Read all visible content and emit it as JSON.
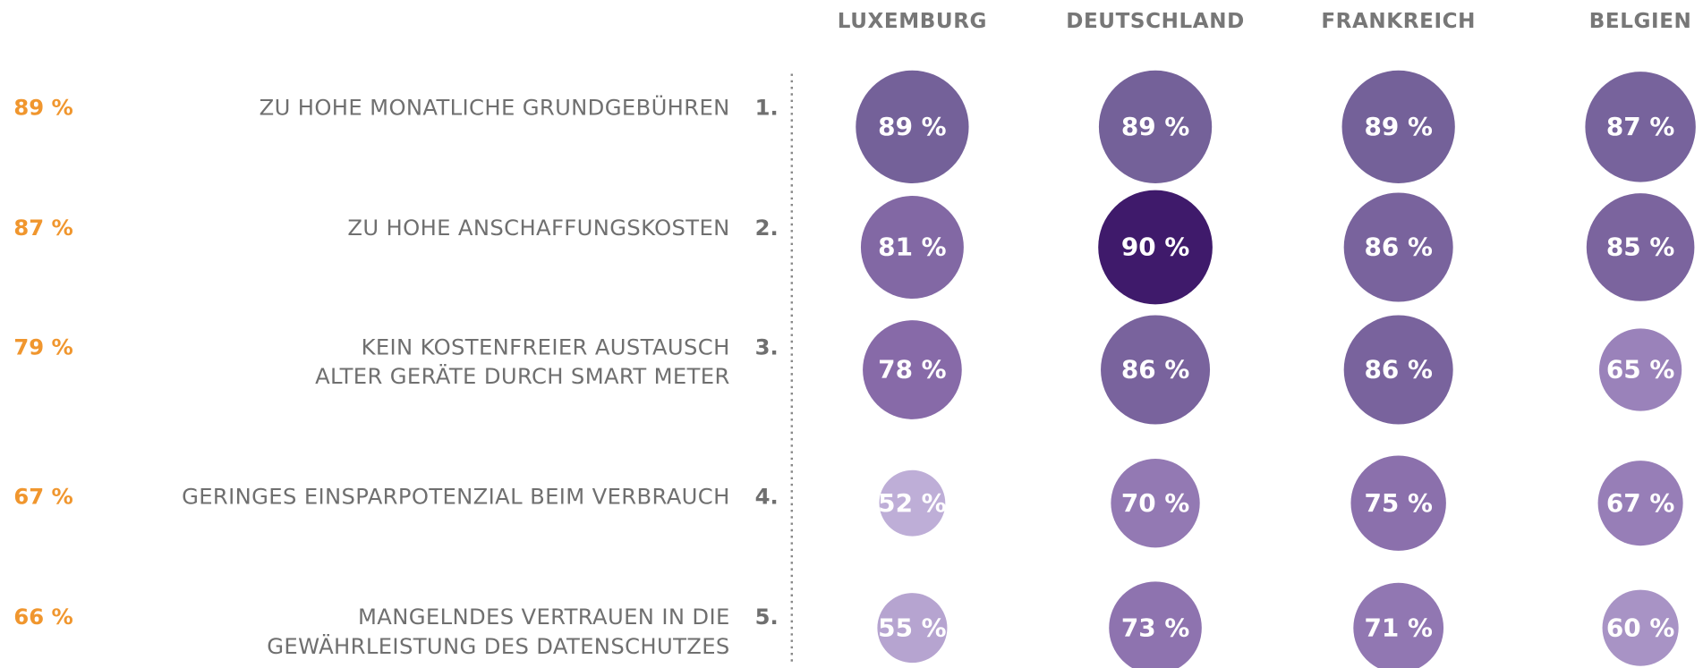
{
  "chart_data": {
    "type": "bubble_matrix",
    "columns": [
      "LUXEMBURG",
      "DEUTSCHLAND",
      "FRANKREICH",
      "BELGIEN"
    ],
    "rows": [
      {
        "total": 89,
        "total_label": "89 %",
        "label_lines": [
          "ZU HOHE MONATLICHE GRUNDGEBÜHREN"
        ],
        "rank": "1.",
        "values": [
          89,
          89,
          89,
          87
        ],
        "value_labels": [
          "89 %",
          "89 %",
          "89 %",
          "87 %"
        ]
      },
      {
        "total": 87,
        "total_label": "87 %",
        "label_lines": [
          "ZU HOHE ANSCHAFFUNGSKOSTEN"
        ],
        "rank": "2.",
        "values": [
          81,
          90,
          86,
          85
        ],
        "value_labels": [
          "81 %",
          "90 %",
          "86 %",
          "85 %"
        ]
      },
      {
        "total": 79,
        "total_label": "79 %",
        "label_lines": [
          "KEIN KOSTENFREIER AUSTAUSCH",
          "ALTER GERÄTE DURCH SMART METER"
        ],
        "rank": "3.",
        "values": [
          78,
          86,
          86,
          65
        ],
        "value_labels": [
          "78 %",
          "86 %",
          "86 %",
          "65 %"
        ]
      },
      {
        "total": 67,
        "total_label": "67 %",
        "label_lines": [
          "GERINGES EINSPARPOTENZIAL BEIM VERBRAUCH"
        ],
        "rank": "4.",
        "values": [
          52,
          70,
          75,
          67
        ],
        "value_labels": [
          "52 %",
          "70 %",
          "75 %",
          "67 %"
        ]
      },
      {
        "total": 66,
        "total_label": "66 %",
        "label_lines": [
          "MANGELNDES VERTRAUEN IN DIE",
          "GEWÄHRLEISTUNG DES DATENSCHUTZES"
        ],
        "rank": "5.",
        "values": [
          55,
          73,
          71,
          60
        ],
        "value_labels": [
          "55 %",
          "73 %",
          "71 %",
          "60 %"
        ]
      }
    ],
    "total_color": "#f0962e"
  }
}
